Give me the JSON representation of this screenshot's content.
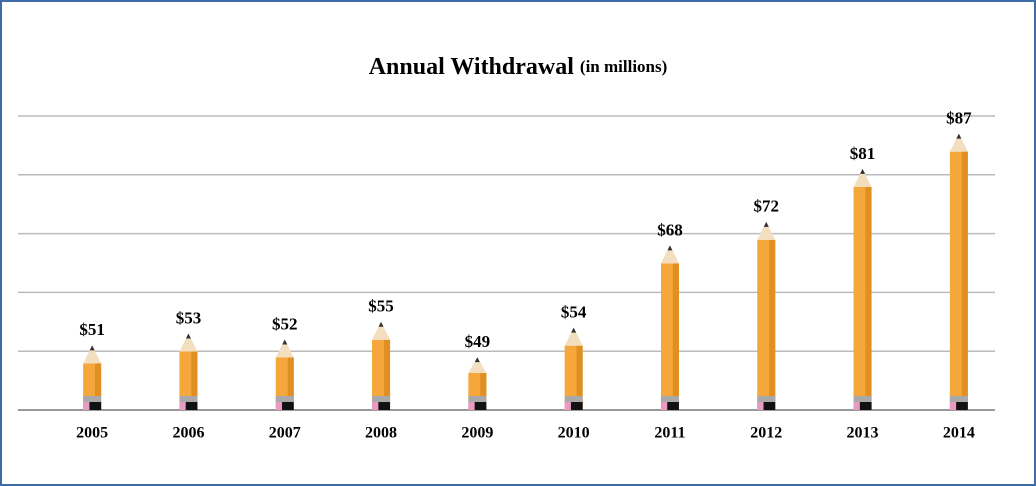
{
  "chart_data": {
    "type": "pencil-bar",
    "title": "Annual Withdrawal",
    "subtitle": "(in millions)",
    "categories": [
      "2005",
      "2006",
      "2007",
      "2008",
      "2009",
      "2010",
      "2011",
      "2012",
      "2013",
      "2014"
    ],
    "values": [
      51,
      53,
      52,
      55,
      49,
      54,
      68,
      72,
      81,
      87
    ],
    "value_labels": [
      "$51",
      "$53",
      "$52",
      "$55",
      "$49",
      "$54",
      "$68",
      "$72",
      "$81",
      "$87"
    ],
    "color": "#f5a73b",
    "ylim": [
      40,
      90
    ],
    "yticks": [
      40,
      50,
      60,
      70,
      80,
      90
    ],
    "grid": true
  }
}
